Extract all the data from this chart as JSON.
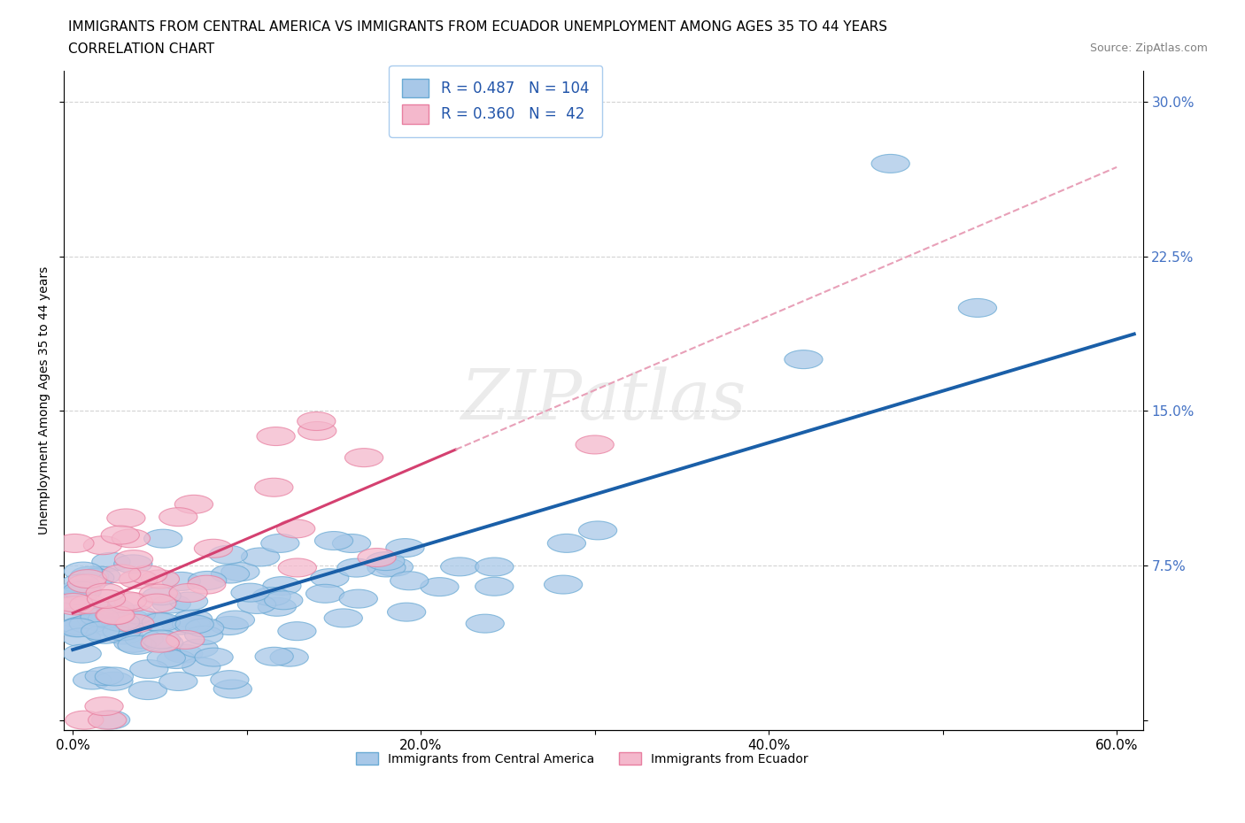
{
  "title_line1": "IMMIGRANTS FROM CENTRAL AMERICA VS IMMIGRANTS FROM ECUADOR UNEMPLOYMENT AMONG AGES 35 TO 44 YEARS",
  "title_line2": "CORRELATION CHART",
  "source_text": "Source: ZipAtlas.com",
  "ylabel": "Unemployment Among Ages 35 to 44 years",
  "xmin": -0.005,
  "xmax": 0.615,
  "ymin": -0.005,
  "ymax": 0.315,
  "yticks": [
    0.0,
    0.075,
    0.15,
    0.225,
    0.3
  ],
  "ytick_labels_right": [
    "",
    "7.5%",
    "15.0%",
    "22.5%",
    "30.0%"
  ],
  "xticks": [
    0.0,
    0.1,
    0.2,
    0.3,
    0.4,
    0.5,
    0.6
  ],
  "xtick_labels": [
    "0.0%",
    "",
    "20.0%",
    "",
    "40.0%",
    "",
    "60.0%"
  ],
  "blue_color": "#a8c8e8",
  "blue_edge_color": "#6aaad4",
  "pink_color": "#f4b8cc",
  "pink_edge_color": "#e87fa0",
  "blue_line_color": "#1a5fa8",
  "pink_line_color": "#d44070",
  "pink_dash_color": "#e8a0b8",
  "R_blue": 0.487,
  "N_blue": 104,
  "R_pink": 0.36,
  "N_pink": 42,
  "legend1": "Immigrants from Central America",
  "legend2": "Immigrants from Ecuador",
  "watermark": "ZIPatlas",
  "title_fontsize": 11,
  "axis_label_fontsize": 10,
  "tick_fontsize": 11,
  "legend_fontsize": 12
}
